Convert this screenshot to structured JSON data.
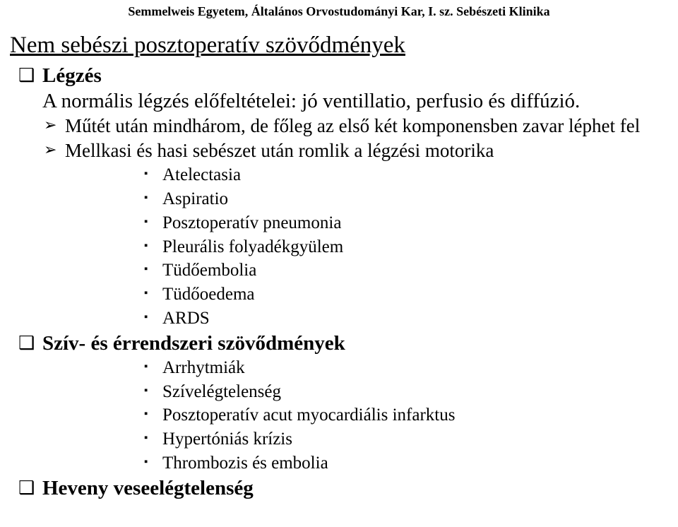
{
  "header": "Semmelweis Egyetem, Általános Orvostudományi Kar, I. sz. Sebészeti Klinika",
  "title": "Nem sebészi posztoperatív szövődmények",
  "sections": {
    "legzes": {
      "heading": "Légzés",
      "intro": "A normális légzés előfeltételei: jó  ventillatio, perfusio és  diffúzió.",
      "sub1": "Műtét után mindhárom, de főleg az első két komponensben zavar léphet fel",
      "sub2": "Mellkasi és hasi sebészet után romlik a légzési motorika",
      "items": {
        "a": "Atelectasia",
        "b": "Aspiratio",
        "c": "Posztoperatív pneumonia",
        "d": "Pleurális folyadékgyülem",
        "e": "Tüdőembolia",
        "f": "Tüdőoedema",
        "g": "ARDS"
      }
    },
    "sziv": {
      "heading": "Szív- és érrendszeri szövődmények",
      "items": {
        "a": "Arrhytmiák",
        "b": "Szívelégtelenség",
        "c": "Posztoperatív acut myocardiális infarktus",
        "d": "Hypertóniás krízis",
        "e": "Thrombozis és embolia"
      }
    },
    "vese": {
      "heading": "Heveny veseelégtelenség"
    }
  },
  "bullets": {
    "square_hollow": "❑",
    "triangle": "➢",
    "square_small": "▪"
  }
}
